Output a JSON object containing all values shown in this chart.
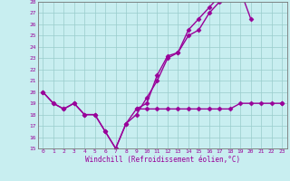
{
  "xlabel": "Windchill (Refroidissement éolien,°C)",
  "xlim": [
    -0.5,
    23.5
  ],
  "ylim": [
    15,
    28
  ],
  "xticks": [
    0,
    1,
    2,
    3,
    4,
    5,
    6,
    7,
    8,
    9,
    10,
    11,
    12,
    13,
    14,
    15,
    16,
    17,
    18,
    19,
    20,
    21,
    22,
    23
  ],
  "yticks": [
    15,
    16,
    17,
    18,
    19,
    20,
    21,
    22,
    23,
    24,
    25,
    26,
    27,
    28
  ],
  "bg_color": "#c8eef0",
  "line_color": "#990099",
  "grid_color": "#99cccc",
  "line1_y": [
    20,
    19,
    18.5,
    19,
    18,
    18,
    16.5,
    15,
    17.2,
    18,
    19.5,
    21,
    23,
    23.5,
    25,
    25.5,
    27,
    28,
    28.5,
    28.5,
    null,
    null,
    null,
    null
  ],
  "line2_y": [
    20,
    19,
    18.5,
    19,
    18,
    18,
    16.5,
    15,
    17.2,
    18.5,
    19,
    21.5,
    23.2,
    23.5,
    25.5,
    26.5,
    27.5,
    28.5,
    29,
    29,
    26.5,
    null,
    null,
    19
  ],
  "line3_y": [
    null,
    null,
    null,
    null,
    null,
    null,
    null,
    null,
    null,
    18.5,
    18.5,
    18.5,
    18.5,
    18.5,
    18.5,
    18.5,
    18.5,
    18.5,
    18.5,
    19,
    19,
    19,
    19,
    19
  ],
  "marker": "D",
  "markersize": 2.5,
  "linewidth": 1.0
}
